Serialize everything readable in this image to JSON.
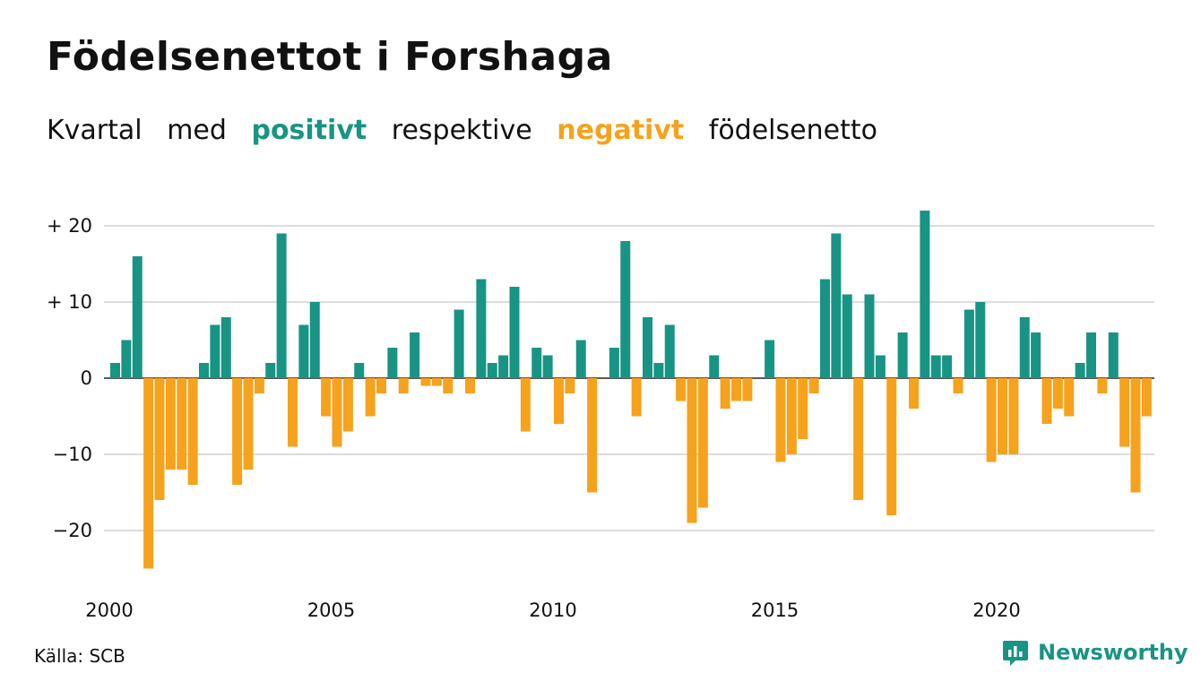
{
  "title": "Födelsenettot i Forshaga",
  "subtitle": {
    "word1": "Kvartal",
    "word2": "med",
    "positive": "positivt",
    "word3": "respektive",
    "negative": "negativt",
    "word4": "födelsenetto"
  },
  "source": "Källa: SCB",
  "brand": {
    "name": "Newsworthy",
    "icon": "newsworthy-logo-icon"
  },
  "colors": {
    "positive": "#189484",
    "negative": "#F6A21C",
    "grid": "#dddddd"
  },
  "chart_data": {
    "type": "bar",
    "title": "Födelsenettot i Forshaga",
    "xlabel": "",
    "ylabel": "",
    "ylim": [
      -27,
      23
    ],
    "grid": true,
    "y_ticks": [
      {
        "value": 20,
        "label": "+ 20"
      },
      {
        "value": 10,
        "label": "+ 10"
      },
      {
        "value": 0,
        "label": "0"
      },
      {
        "value": -10,
        "label": "−10"
      },
      {
        "value": -20,
        "label": "−20"
      }
    ],
    "x_ticks": [
      {
        "value": 2000,
        "label": "2000"
      },
      {
        "value": 2005,
        "label": "2005"
      },
      {
        "value": 2010,
        "label": "2010"
      },
      {
        "value": 2015,
        "label": "2015"
      },
      {
        "value": 2020,
        "label": "2020"
      }
    ],
    "start_year": 2000,
    "start_quarter": 1,
    "values": [
      2,
      5,
      16,
      -25,
      -16,
      -12,
      -12,
      -14,
      2,
      7,
      8,
      -14,
      -12,
      -2,
      2,
      19,
      -9,
      7,
      10,
      -5,
      -9,
      -7,
      2,
      -5,
      -2,
      4,
      -2,
      6,
      -1,
      -1,
      -2,
      9,
      -2,
      13,
      2,
      3,
      12,
      -7,
      4,
      3,
      -6,
      -2,
      5,
      -15,
      0,
      4,
      18,
      -5,
      8,
      2,
      7,
      -3,
      -19,
      -17,
      3,
      -4,
      -3,
      -3,
      0,
      5,
      -11,
      -10,
      -8,
      -2,
      13,
      19,
      11,
      -16,
      11,
      3,
      -18,
      6,
      -4,
      22,
      3,
      3,
      -2,
      9,
      10,
      -11,
      -10,
      -10,
      8,
      6,
      -6,
      -4,
      -5,
      2,
      6,
      -2,
      6,
      -9,
      -15,
      -5
    ]
  }
}
